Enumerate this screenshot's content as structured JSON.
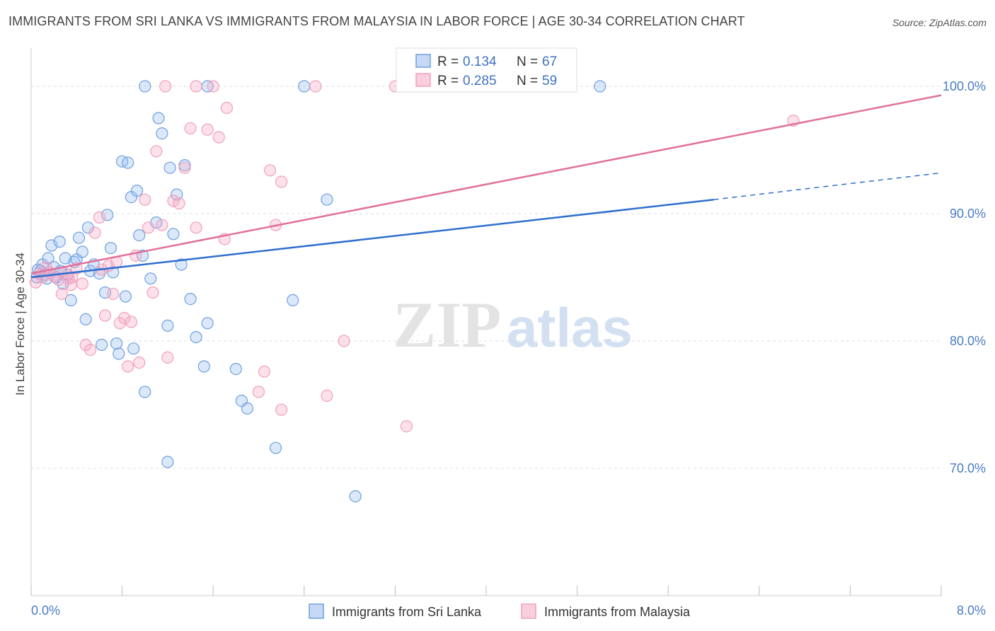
{
  "title": "IMMIGRANTS FROM SRI LANKA VS IMMIGRANTS FROM MALAYSIA IN LABOR FORCE | AGE 30-34 CORRELATION CHART",
  "source": "Source: ZipAtlas.com",
  "watermark": {
    "zip": "ZIP",
    "atlas": "atlas"
  },
  "colors": {
    "blue": "#6fa0e0",
    "blue_line": "#2f6fcf",
    "pink": "#f0a0bb",
    "pink_line": "#e0709a",
    "tick": "#4a7cc4"
  },
  "chart_data": {
    "type": "scatter",
    "xlabel": "",
    "ylabel": "In Labor Force | Age 30-34",
    "xlim": [
      0,
      8
    ],
    "ylim": [
      60,
      103
    ],
    "x_tick_labels": [
      "0.0%",
      "8.0%"
    ],
    "y_ticks": [
      70,
      80,
      90,
      100
    ],
    "y_tick_labels": [
      "70.0%",
      "80.0%",
      "90.0%",
      "100.0%"
    ],
    "grid": true,
    "legend_position": "top-center",
    "stats": [
      {
        "r_label": "R =",
        "r": "0.134",
        "n_label": "N =",
        "n": "67"
      },
      {
        "r_label": "R =",
        "r": "0.285",
        "n_label": "N =",
        "n": "59"
      }
    ],
    "series": [
      {
        "name": "Immigrants from Sri Lanka",
        "color": "#6fa0e0",
        "trend": {
          "x0": 0,
          "y0": 85.0,
          "x1": 6.0,
          "y1": 91.1,
          "dash_to_x": 8.0,
          "dash_to_y": 93.2
        },
        "points": [
          [
            0.05,
            85.0
          ],
          [
            0.08,
            85.5
          ],
          [
            0.1,
            86.0
          ],
          [
            0.12,
            85.2
          ],
          [
            0.15,
            86.5
          ],
          [
            0.18,
            87.5
          ],
          [
            0.2,
            85.8
          ],
          [
            0.22,
            85.0
          ],
          [
            0.25,
            87.8
          ],
          [
            0.28,
            84.5
          ],
          [
            0.3,
            86.5
          ],
          [
            0.32,
            85.2
          ],
          [
            0.35,
            83.2
          ],
          [
            0.38,
            86.2
          ],
          [
            0.4,
            86.4
          ],
          [
            0.42,
            88.1
          ],
          [
            0.45,
            87.0
          ],
          [
            0.48,
            81.7
          ],
          [
            0.5,
            88.9
          ],
          [
            0.52,
            85.5
          ],
          [
            0.55,
            86.0
          ],
          [
            0.6,
            85.3
          ],
          [
            0.62,
            79.7
          ],
          [
            0.65,
            83.8
          ],
          [
            0.67,
            89.9
          ],
          [
            0.7,
            87.3
          ],
          [
            0.72,
            85.4
          ],
          [
            0.75,
            79.8
          ],
          [
            0.77,
            79.0
          ],
          [
            0.8,
            94.1
          ],
          [
            0.83,
            83.5
          ],
          [
            0.85,
            94.0
          ],
          [
            0.88,
            91.3
          ],
          [
            0.9,
            79.4
          ],
          [
            0.93,
            91.8
          ],
          [
            0.95,
            88.3
          ],
          [
            0.98,
            86.7
          ],
          [
            1.0,
            76.0
          ],
          [
            1.05,
            84.9
          ],
          [
            1.1,
            89.3
          ],
          [
            1.12,
            97.5
          ],
          [
            1.15,
            96.3
          ],
          [
            1.2,
            81.2
          ],
          [
            1.22,
            93.6
          ],
          [
            1.25,
            88.4
          ],
          [
            1.28,
            91.5
          ],
          [
            1.32,
            86.0
          ],
          [
            1.35,
            93.8
          ],
          [
            1.4,
            83.3
          ],
          [
            1.45,
            80.3
          ],
          [
            1.52,
            78.0
          ],
          [
            1.55,
            81.4
          ],
          [
            1.8,
            77.8
          ],
          [
            1.85,
            75.3
          ],
          [
            1.9,
            74.7
          ],
          [
            2.15,
            71.6
          ],
          [
            2.3,
            83.2
          ],
          [
            2.6,
            91.1
          ],
          [
            2.85,
            67.8
          ],
          [
            1.0,
            100.0
          ],
          [
            1.55,
            100.0
          ],
          [
            2.4,
            100.0
          ],
          [
            5.0,
            100.0
          ],
          [
            0.06,
            85.6
          ],
          [
            0.14,
            84.9
          ],
          [
            0.26,
            85.5
          ],
          [
            1.2,
            70.5
          ]
        ]
      },
      {
        "name": "Immigrants from Malaysia",
        "color": "#f0a0bb",
        "trend": {
          "x0": 0,
          "y0": 85.3,
          "x1": 8.0,
          "y1": 99.3
        },
        "points": [
          [
            0.04,
            84.6
          ],
          [
            0.07,
            85.3
          ],
          [
            0.1,
            85.0
          ],
          [
            0.13,
            85.8
          ],
          [
            0.16,
            85.4
          ],
          [
            0.2,
            85.1
          ],
          [
            0.24,
            84.8
          ],
          [
            0.27,
            83.7
          ],
          [
            0.3,
            85.3
          ],
          [
            0.33,
            84.9
          ],
          [
            0.36,
            85.0
          ],
          [
            0.4,
            85.7
          ],
          [
            0.45,
            84.5
          ],
          [
            0.48,
            79.7
          ],
          [
            0.52,
            79.3
          ],
          [
            0.56,
            88.5
          ],
          [
            0.6,
            89.7
          ],
          [
            0.62,
            85.6
          ],
          [
            0.65,
            82.0
          ],
          [
            0.68,
            85.9
          ],
          [
            0.72,
            83.7
          ],
          [
            0.75,
            86.2
          ],
          [
            0.78,
            81.4
          ],
          [
            0.82,
            81.8
          ],
          [
            0.85,
            78.0
          ],
          [
            0.88,
            81.5
          ],
          [
            0.92,
            86.7
          ],
          [
            0.95,
            78.3
          ],
          [
            1.0,
            91.1
          ],
          [
            1.03,
            88.9
          ],
          [
            1.07,
            83.8
          ],
          [
            1.1,
            94.9
          ],
          [
            1.15,
            89.1
          ],
          [
            1.2,
            78.7
          ],
          [
            1.25,
            91.0
          ],
          [
            1.3,
            90.8
          ],
          [
            1.35,
            93.6
          ],
          [
            1.4,
            96.7
          ],
          [
            1.45,
            88.9
          ],
          [
            1.55,
            96.6
          ],
          [
            1.65,
            96.0
          ],
          [
            1.7,
            88.0
          ],
          [
            1.72,
            98.3
          ],
          [
            2.0,
            76.0
          ],
          [
            2.1,
            93.4
          ],
          [
            2.2,
            92.5
          ],
          [
            2.15,
            89.1
          ],
          [
            2.05,
            77.6
          ],
          [
            2.2,
            74.6
          ],
          [
            2.6,
            75.7
          ],
          [
            2.75,
            80.0
          ],
          [
            3.3,
            73.3
          ],
          [
            1.18,
            100.0
          ],
          [
            1.45,
            100.0
          ],
          [
            1.6,
            100.0
          ],
          [
            2.5,
            100.0
          ],
          [
            3.2,
            100.0
          ],
          [
            6.7,
            97.3
          ],
          [
            0.35,
            84.4
          ]
        ]
      }
    ]
  }
}
